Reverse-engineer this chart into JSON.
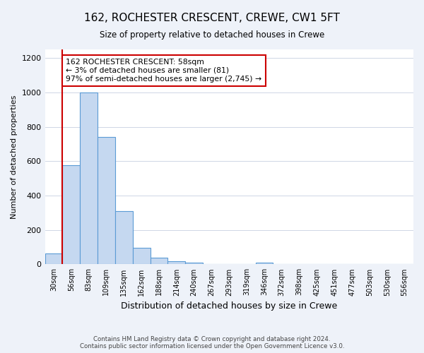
{
  "title": "162, ROCHESTER CRESCENT, CREWE, CW1 5FT",
  "subtitle": "Size of property relative to detached houses in Crewe",
  "xlabel": "Distribution of detached houses by size in Crewe",
  "ylabel": "Number of detached properties",
  "bin_labels": [
    "30sqm",
    "56sqm",
    "83sqm",
    "109sqm",
    "135sqm",
    "162sqm",
    "188sqm",
    "214sqm",
    "240sqm",
    "267sqm",
    "293sqm",
    "319sqm",
    "346sqm",
    "372sqm",
    "398sqm",
    "425sqm",
    "451sqm",
    "477sqm",
    "503sqm",
    "530sqm",
    "556sqm"
  ],
  "bar_heights": [
    65,
    575,
    1000,
    740,
    310,
    95,
    40,
    20,
    10,
    0,
    0,
    0,
    10,
    0,
    0,
    0,
    0,
    0,
    0,
    0,
    0
  ],
  "bar_color": "#c5d8f0",
  "bar_edge_color": "#5b9bd5",
  "bar_edge_width": 0.8,
  "property_line_x": 1,
  "property_line_color": "#cc0000",
  "annotation_text": "162 ROCHESTER CRESCENT: 58sqm\n← 3% of detached houses are smaller (81)\n97% of semi-detached houses are larger (2,745) →",
  "annotation_box_color": "#ffffff",
  "annotation_box_edge_color": "#cc0000",
  "ylim": [
    0,
    1250
  ],
  "yticks": [
    0,
    200,
    400,
    600,
    800,
    1000,
    1200
  ],
  "footer_line1": "Contains HM Land Registry data © Crown copyright and database right 2024.",
  "footer_line2": "Contains public sector information licensed under the Open Government Licence v3.0.",
  "background_color": "#eef2f9",
  "plot_background_color": "#ffffff"
}
